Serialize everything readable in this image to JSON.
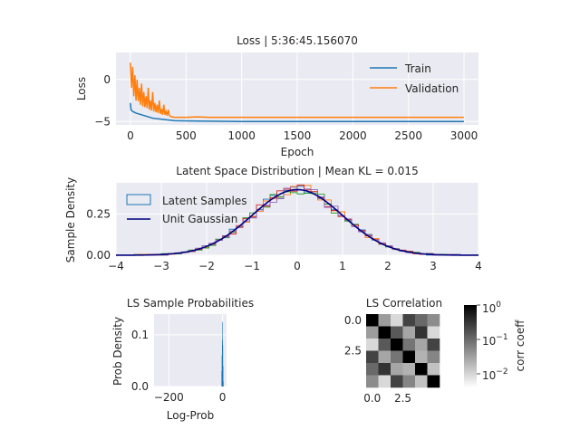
{
  "chart_data": [
    {
      "type": "line",
      "title": "Loss | 5:36:45.156070",
      "xlabel": "Epoch",
      "ylabel": "Loss",
      "xlim": [
        -130,
        3130
      ],
      "ylim": [
        -5.4,
        3.2
      ],
      "xticks": [
        0,
        500,
        1000,
        1500,
        2000,
        2500,
        3000
      ],
      "yticks": [
        -5,
        0
      ],
      "grid": true,
      "legend": "top-right",
      "series": [
        {
          "name": "Train",
          "color": "#1f77b4",
          "x": [
            0,
            5,
            20,
            50,
            100,
            150,
            200,
            300,
            400,
            600,
            1000,
            2000,
            3000
          ],
          "y": [
            -2.8,
            -3.6,
            -3.8,
            -4.0,
            -4.2,
            -4.4,
            -4.6,
            -4.75,
            -4.9,
            -4.95,
            -5.0,
            -5.0,
            -5.0
          ]
        },
        {
          "name": "Validation",
          "color": "#ff7f0e",
          "x": [
            0,
            10,
            20,
            30,
            40,
            50,
            60,
            70,
            80,
            90,
            100,
            110,
            120,
            130,
            140,
            150,
            160,
            170,
            180,
            190,
            200,
            210,
            220,
            230,
            240,
            250,
            260,
            270,
            280,
            290,
            300,
            310,
            320,
            330,
            340,
            350,
            370,
            400,
            500,
            600,
            700,
            1000,
            2000,
            3000
          ],
          "y": [
            2.0,
            -1.0,
            1.5,
            -2.0,
            0.5,
            -2.5,
            0.0,
            -2.6,
            -1.0,
            -3.0,
            -0.5,
            -3.2,
            -1.5,
            -3.3,
            -2.0,
            -3.4,
            -1.0,
            -3.6,
            -2.5,
            -3.7,
            -1.5,
            -3.8,
            -2.8,
            -3.9,
            -3.0,
            -4.0,
            -2.5,
            -4.1,
            -3.5,
            -4.2,
            -3.0,
            -4.2,
            -3.8,
            -4.3,
            -3.6,
            -4.3,
            -4.45,
            -4.5,
            -4.5,
            -4.45,
            -4.5,
            -4.5,
            -4.5,
            -4.5
          ]
        }
      ]
    },
    {
      "type": "area",
      "title": "Latent Space Distribution | Mean KL = 0.015",
      "xlabel": "",
      "ylabel": "Sample Density",
      "xlim": [
        -4,
        4
      ],
      "ylim": [
        0,
        0.44
      ],
      "xticks": [
        -4,
        -3,
        -2,
        -1,
        0,
        1,
        2,
        3,
        4
      ],
      "yticks": [
        0.0,
        0.25
      ],
      "ytick_labels": [
        "0.00",
        "0.25"
      ],
      "grid": true,
      "legend": "top-left",
      "legend_entries": [
        "Latent Samples",
        "Unit Gaussian"
      ],
      "gaussian_color": "#000080",
      "sample_colors": [
        "#1f77b4",
        "#ff7f0e",
        "#2ca02c",
        "#d62728",
        "#9467bd"
      ],
      "bin_range": [
        -3.6,
        3.6
      ],
      "bin_count": 48
    },
    {
      "type": "bar",
      "title": "LS Sample Probabilities",
      "xlabel": "Log-Prob",
      "ylabel": "Prob Density",
      "xlim": [
        -255,
        15
      ],
      "ylim": [
        0,
        0.14
      ],
      "xticks": [
        -200,
        0
      ],
      "yticks": [
        0.0,
        0.1
      ],
      "ytick_labels": [
        "0.0",
        "0.1"
      ],
      "color": "#1f77b4",
      "bins_x": [
        -4,
        -3,
        -2,
        -1,
        0,
        1,
        2
      ],
      "values": [
        0.03,
        0.06,
        0.09,
        0.125,
        0.08,
        0.04,
        0.01
      ]
    },
    {
      "type": "heatmap",
      "title": "LS Correlation",
      "colorbar_label": "corr coeff",
      "colorbar_ticks": [
        "10",
        "10",
        "10"
      ],
      "colorbar_exponents": [
        "0",
        "−1",
        "−2"
      ],
      "xticks": [
        "0.0",
        "2.5"
      ],
      "yticks": [
        "0.0",
        "2.5"
      ],
      "matrix": [
        [
          1.0,
          0.06,
          0.02,
          0.3,
          0.15,
          0.08
        ],
        [
          0.06,
          1.0,
          0.2,
          0.05,
          0.4,
          0.02
        ],
        [
          0.02,
          0.2,
          1.0,
          0.12,
          0.05,
          0.3
        ],
        [
          0.3,
          0.05,
          0.12,
          1.0,
          0.04,
          0.09
        ],
        [
          0.15,
          0.4,
          0.05,
          0.04,
          1.0,
          0.03
        ],
        [
          0.08,
          0.02,
          0.3,
          0.09,
          0.03,
          1.0
        ]
      ]
    }
  ]
}
